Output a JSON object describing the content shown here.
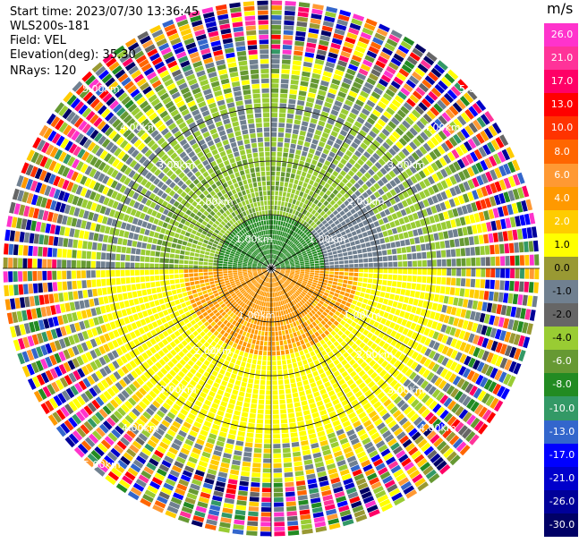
{
  "header": {
    "start_time": "Start time: 2023/07/30 13:36:45",
    "site": "WLS200s-181",
    "field": "Field: VEL",
    "elevation": "Elevation(deg): 35.30",
    "nrays": "NRays: 120"
  },
  "colorbar": {
    "unit": "m/s",
    "ticks": [
      "26.0",
      "21.0",
      "17.0",
      "13.0",
      "10.0",
      "8.0",
      "6.0",
      "4.0",
      "2.0",
      "1.0",
      "0.0",
      "-1.0",
      "-2.0",
      "-4.0",
      "-6.0",
      "-8.0",
      "-10.0",
      "-13.0",
      "-17.0",
      "-21.0",
      "-26.0",
      "-30.0"
    ],
    "colors": [
      "#ff33cc",
      "#ff3399",
      "#ff0066",
      "#ff0000",
      "#ff3300",
      "#ff6600",
      "#ff9933",
      "#ff9900",
      "#ffcc00",
      "#ffff00",
      "#999933",
      "#708090",
      "#666666",
      "#99cc33",
      "#669933",
      "#228b22",
      "#339966",
      "#3366cc",
      "#0000ff",
      "#0000cc",
      "#000099",
      "#000066"
    ]
  },
  "range_labels": [
    "1.00km",
    "2.00km",
    "3.00km",
    "4.00km",
    "5.00km"
  ]
}
